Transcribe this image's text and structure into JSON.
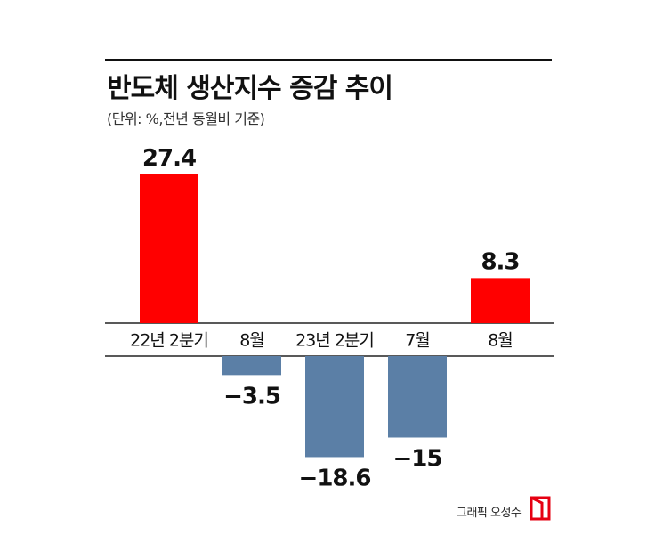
{
  "title": "반도체 생산지수 증감 추이",
  "subtitle": "(단위: %,전년 동월비 기준)",
  "credit": "그래픽 오성수",
  "colors": {
    "positive": "#ff0000",
    "negative": "#5b7fa6",
    "text": "#111111"
  },
  "chart_data": {
    "type": "bar",
    "categories": [
      "22년 2분기",
      "8월",
      "23년 2분기",
      "7월",
      "8월"
    ],
    "values": [
      27.4,
      -3.5,
      -18.6,
      -15,
      8.3
    ],
    "value_labels": [
      "27.4",
      "−3.5",
      "−18.6",
      "−15",
      "8.3"
    ],
    "title": "반도체 생산지수 증감 추이",
    "subtitle": "(단위: %,전년 동월비 기준)",
    "ylim": [
      -18.6,
      27.4
    ],
    "grid": false,
    "legend": "none"
  }
}
